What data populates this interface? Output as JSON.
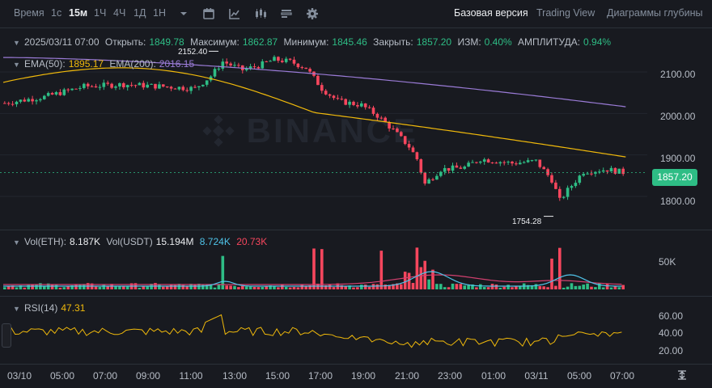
{
  "toolbar": {
    "time_label": "Время",
    "intervals": [
      "1с",
      "15м",
      "1Ч",
      "4Ч",
      "1Д",
      "1Н"
    ],
    "active_interval": "15м",
    "views": [
      "Базовая версия",
      "Trading View",
      "Диаграммы глубины"
    ],
    "active_view": "Базовая версия",
    "icons": [
      "chevron-down-icon",
      "calendar-icon",
      "indicator-icon",
      "candle-type-icon",
      "template-icon",
      "settings-icon"
    ]
  },
  "ohlc": {
    "datetime": "2025/03/11 07:00",
    "open_label": "Открыть:",
    "open": "1849.78",
    "high_label": "Максимум:",
    "high": "1862.87",
    "low_label": "Минимум:",
    "low": "1845.46",
    "close_label": "Закрыть:",
    "close": "1857.20",
    "change_label": "ИЗМ:",
    "change": "0.40%",
    "amp_label": "АМПЛИТУДА:",
    "amp": "0.94%"
  },
  "ema": {
    "ema50_label": "EMA(50):",
    "ema50": "1895.17",
    "ema200_label": "EMA(200):",
    "ema200": "2016.15"
  },
  "volume": {
    "label1": "Vol(ETH):",
    "val1": "8.187K",
    "label2": "Vol(USDT)",
    "val2": "15.194M",
    "val3": "8.724K",
    "val4": "20.73K",
    "axis_label": "50K"
  },
  "rsi": {
    "label": "RSI(14)",
    "value": "47.31",
    "axis": [
      "60.00",
      "40.00",
      "20.00"
    ]
  },
  "price_axis": [
    "2100.00",
    "2000.00",
    "1900.00",
    "1800.00"
  ],
  "current_price": "1857.20",
  "annotations": {
    "high_mark": "2152.40",
    "low_mark": "1754.28"
  },
  "x_axis": [
    "03/10",
    "05:00",
    "07:00",
    "09:00",
    "11:00",
    "13:00",
    "15:00",
    "17:00",
    "19:00",
    "21:00",
    "23:00",
    "01:00",
    "03/11",
    "05:00",
    "07:00"
  ],
  "watermark": "BINANCE",
  "colors": {
    "up": "#2ebd85",
    "down": "#f6465d",
    "ema50": "#f0b90b",
    "ema200": "#9a7bd6",
    "vol_ma1": "#4fc3e8",
    "vol_ma2": "#d2406f",
    "rsi": "#f0b90b"
  },
  "chart_data": {
    "type": "candlestick",
    "interval": "15m",
    "y_range": [
      1720,
      2180
    ],
    "price_trend_key": [
      [
        0,
        2025
      ],
      [
        10,
        2040
      ],
      [
        20,
        2065
      ],
      [
        30,
        2070
      ],
      [
        40,
        2065
      ],
      [
        48,
        2060
      ],
      [
        52,
        2090
      ],
      [
        55,
        2125
      ],
      [
        60,
        2105
      ],
      [
        64,
        2115
      ],
      [
        68,
        2130
      ],
      [
        72,
        2125
      ],
      [
        76,
        2110
      ],
      [
        80,
        2060
      ],
      [
        84,
        2030
      ],
      [
        90,
        2020
      ],
      [
        94,
        1995
      ],
      [
        98,
        1960
      ],
      [
        102,
        1920
      ],
      [
        104,
        1890
      ],
      [
        106,
        1830
      ],
      [
        110,
        1865
      ],
      [
        116,
        1870
      ],
      [
        120,
        1890
      ],
      [
        128,
        1880
      ],
      [
        134,
        1885
      ],
      [
        138,
        1840
      ],
      [
        140,
        1790
      ],
      [
        142,
        1815
      ],
      [
        146,
        1860
      ],
      [
        152,
        1865
      ],
      [
        156,
        1858
      ]
    ],
    "ema50": {
      "start": 2075,
      "end": 1895.17
    },
    "ema200": {
      "start": 2135,
      "end": 2016.15
    },
    "rsi_range": [
      0,
      100
    ]
  }
}
